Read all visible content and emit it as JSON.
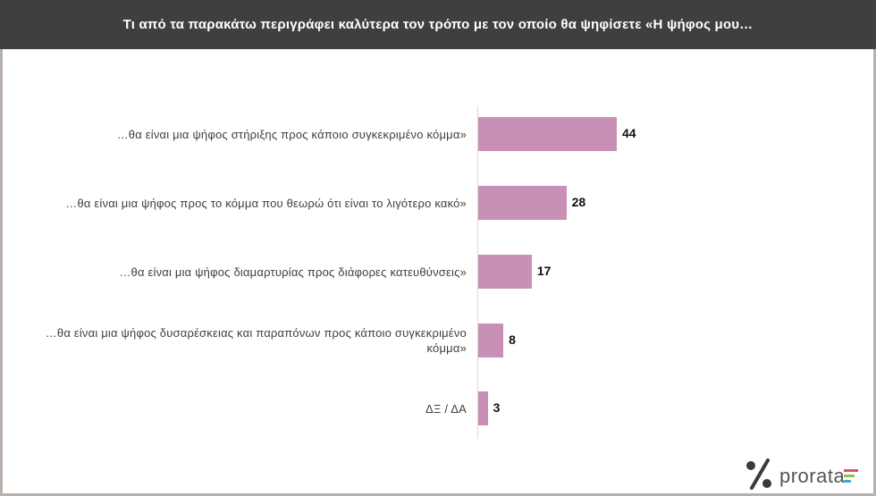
{
  "title": "Τι από τα παρακάτω περιγράφει καλύτερα τον τρόπο με τον οποίο θα ψηφίσετε «Η ψήφος μου…",
  "chart_data": {
    "type": "bar",
    "orientation": "horizontal",
    "categories": [
      "…θα είναι μια ψήφος στήριξης προς κάποιο συγκεκριμένο κόμμα»",
      "…θα είναι μια ψήφος προς το κόμμα που θεωρώ ότι είναι το λιγότερο κακό»",
      "…θα είναι μια ψήφος διαμαρτυρίας προς διάφορες κατευθύνσεις»",
      "…θα είναι μια ψήφος δυσαρέσκειας και παραπόνων προς κάποιο συγκεκριμένο κόμμα»",
      "ΔΞ / ΔΑ"
    ],
    "values": [
      44,
      28,
      17,
      8,
      3
    ],
    "labels": [
      "44",
      "28",
      "17",
      "8",
      "3"
    ],
    "bar_color": "#c990b5",
    "grid": false,
    "legend": "none"
  },
  "logo": {
    "text": "prorata",
    "colors": [
      "#d94f8a",
      "#8fbf4d",
      "#4aa3d8"
    ]
  }
}
